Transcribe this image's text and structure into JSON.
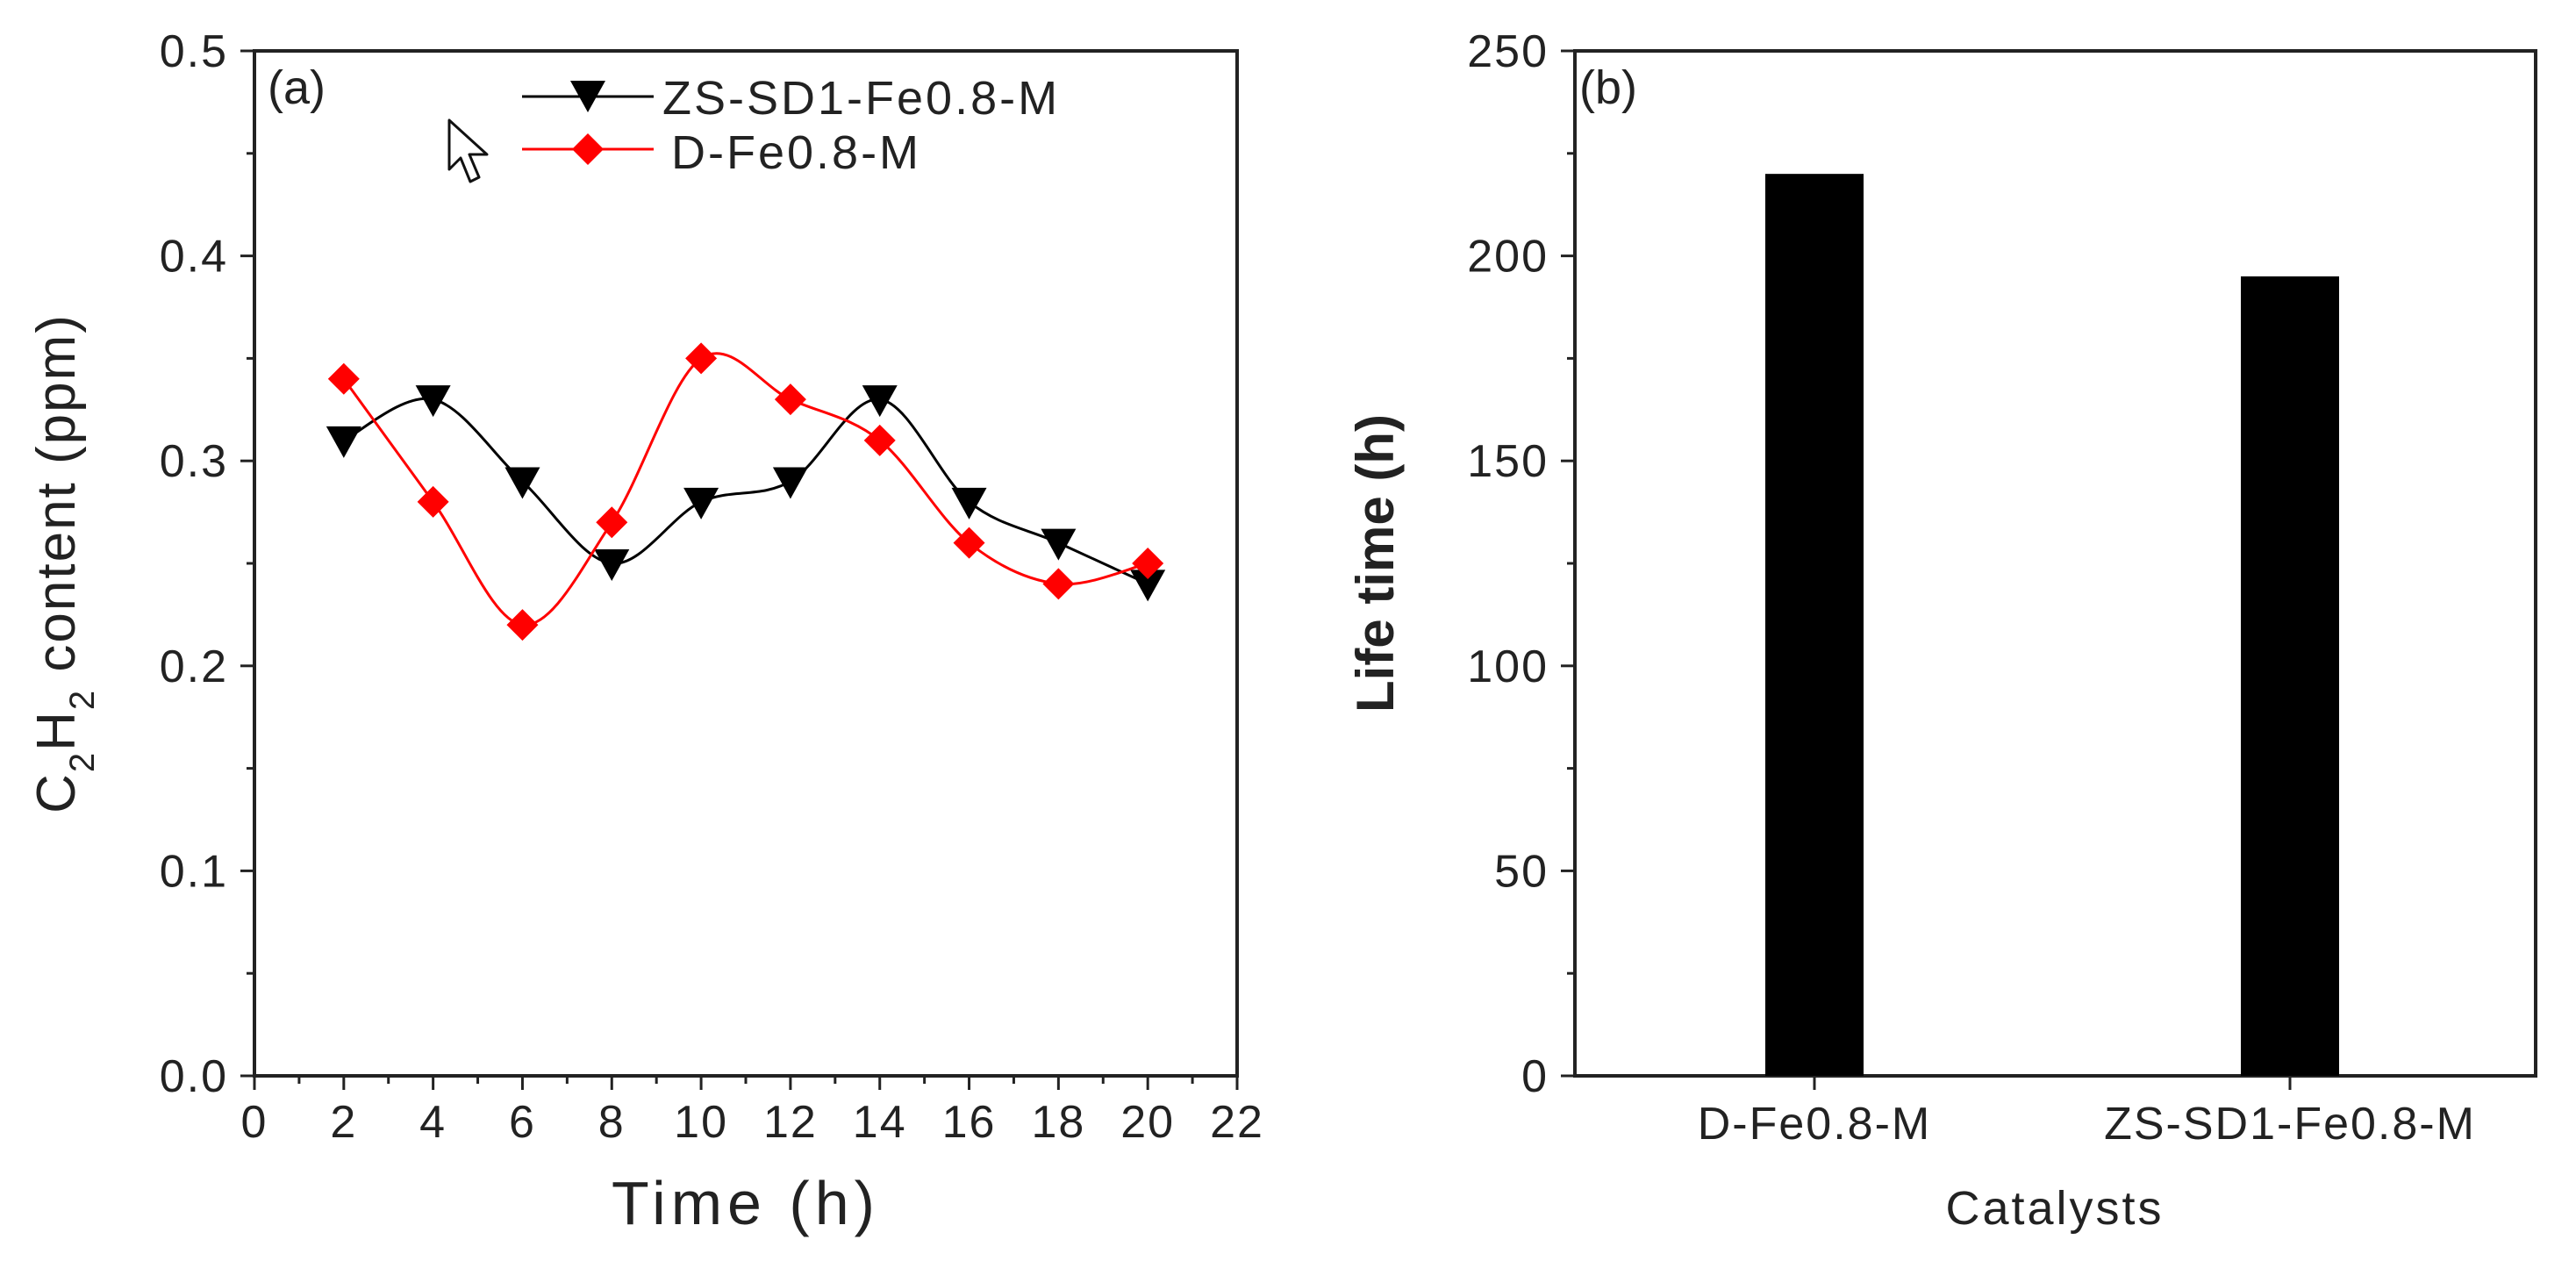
{
  "chart_data": [
    {
      "type": "line",
      "panel_label": "(a)",
      "xlabel": "Time (h)",
      "ylabel_parts": {
        "c": "C",
        "sub1": "2",
        "h": "H",
        "sub2": "2",
        "rest": " content (ppm)"
      },
      "xlim": [
        0,
        22
      ],
      "ylim": [
        0.0,
        0.5
      ],
      "xticks": [
        "0",
        "2",
        "4",
        "6",
        "8",
        "10",
        "12",
        "14",
        "16",
        "18",
        "20",
        "22"
      ],
      "yticks": [
        "0.0",
        "0.1",
        "0.2",
        "0.3",
        "0.4",
        "0.5"
      ],
      "x": [
        2,
        4,
        6,
        8,
        10,
        12,
        14,
        16,
        18,
        20
      ],
      "series": [
        {
          "name": "ZS-SD1-Fe0.8-M",
          "color": "#000000",
          "marker": "down-triangle",
          "values": [
            0.31,
            0.33,
            0.29,
            0.25,
            0.28,
            0.29,
            0.33,
            0.28,
            0.26,
            0.24
          ]
        },
        {
          "name": "D-Fe0.8-M",
          "color": "#ff0000",
          "marker": "diamond",
          "values": [
            0.34,
            0.28,
            0.22,
            0.27,
            0.35,
            0.33,
            0.31,
            0.26,
            0.24,
            0.25
          ]
        }
      ],
      "legend_position": "top"
    },
    {
      "type": "bar",
      "panel_label": "(b)",
      "xlabel": "Catalysts",
      "ylabel": "Life time (h)",
      "categories": [
        "D-Fe0.8-M",
        "ZS-SD1-Fe0.8-M"
      ],
      "values": [
        220,
        195
      ],
      "ylim": [
        0,
        250
      ],
      "yticks": [
        "0",
        "50",
        "100",
        "150",
        "200",
        "250"
      ],
      "bar_color": "#000000"
    }
  ]
}
